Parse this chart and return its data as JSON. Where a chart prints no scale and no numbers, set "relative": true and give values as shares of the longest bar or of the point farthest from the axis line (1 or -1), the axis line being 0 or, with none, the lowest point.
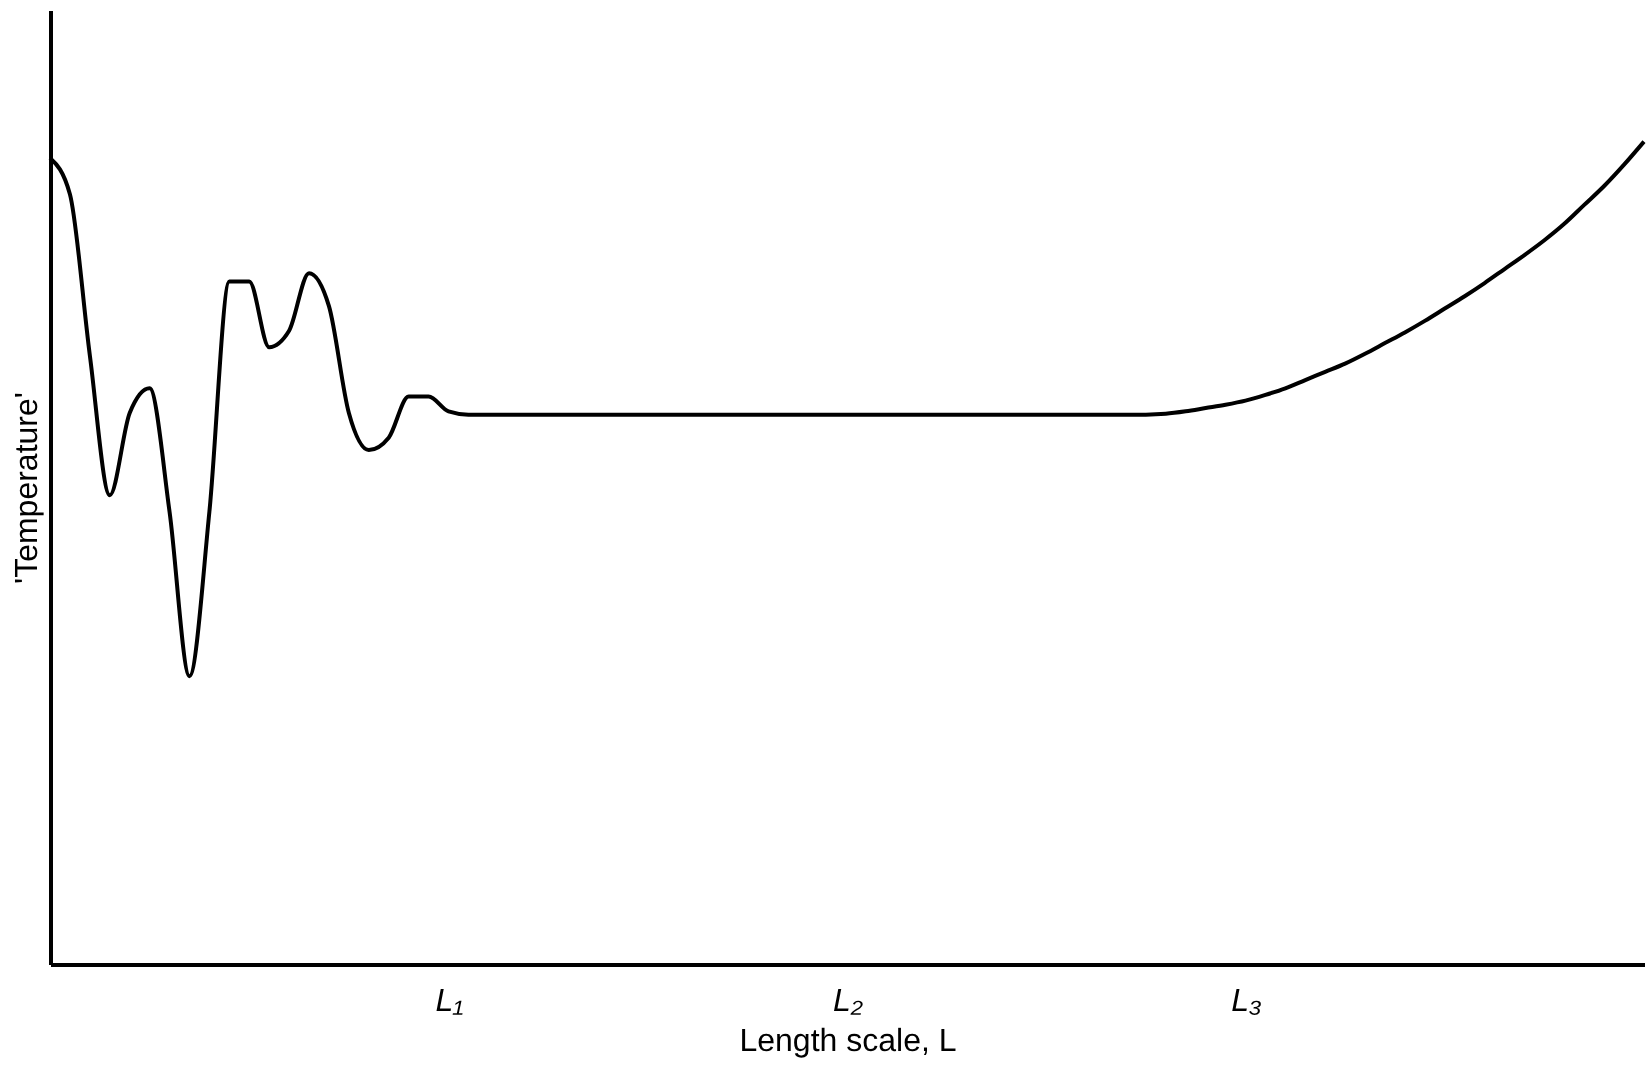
{
  "chart_data": {
    "type": "line",
    "relative": true,
    "xlabel": "Length scale, L",
    "ylabel": "'Temperature'",
    "categories": [
      null,
      null,
      null,
      null,
      null,
      null,
      null,
      null,
      null,
      null,
      null,
      null,
      null,
      null,
      null,
      null,
      null,
      null,
      null,
      null,
      "L₁",
      null,
      null,
      null,
      null,
      null,
      null,
      null,
      null,
      null,
      null,
      null,
      null,
      null,
      null,
      null,
      null,
      null,
      null,
      null,
      "L₂",
      null,
      null,
      null,
      null,
      null,
      null,
      null,
      null,
      null,
      null,
      null,
      null,
      null,
      null,
      null,
      null,
      null,
      null,
      null,
      "L₃",
      null,
      null,
      null,
      null,
      null,
      null,
      null,
      null,
      null,
      null,
      null,
      null,
      null,
      null,
      null,
      null,
      null,
      null,
      null,
      null
    ],
    "series": [
      {
        "color": "#000000",
        "values": [
          0.98,
          0.936,
          0.74,
          0.57,
          0.67,
          0.7,
          0.55,
          0.35,
          0.55,
          0.83,
          0.83,
          0.75,
          0.77,
          0.84,
          0.8,
          0.67,
          0.625,
          0.64,
          0.69,
          0.69,
          0.672,
          0.668,
          0.668,
          0.668,
          0.668,
          0.668,
          0.668,
          0.668,
          0.668,
          0.668,
          0.668,
          0.668,
          0.668,
          0.668,
          0.668,
          0.668,
          0.668,
          0.668,
          0.668,
          0.668,
          0.668,
          0.668,
          0.668,
          0.668,
          0.668,
          0.668,
          0.668,
          0.668,
          0.668,
          0.668,
          0.668,
          0.668,
          0.668,
          0.668,
          0.668,
          0.668,
          0.669,
          0.672,
          0.676,
          0.68,
          0.685,
          0.692,
          0.7,
          0.71,
          0.72,
          0.73,
          0.742,
          0.755,
          0.768,
          0.782,
          0.797,
          0.812,
          0.828,
          0.845,
          0.862,
          0.88,
          0.9,
          0.923,
          0.946,
          0.972,
          1.0
        ]
      }
    ],
    "marker": "none",
    "line_style": "solid"
  }
}
